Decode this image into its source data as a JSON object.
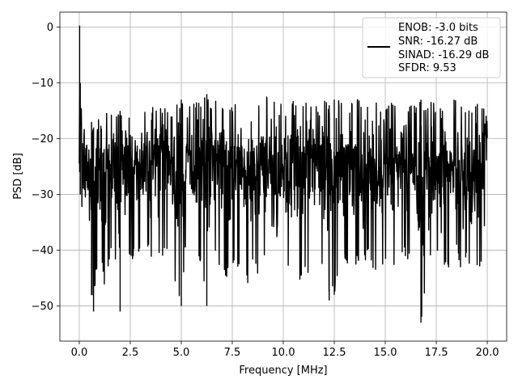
{
  "chart_data": {
    "type": "line",
    "xlabel": "Frequency [MHz]",
    "ylabel": "PSD [dB]",
    "xlim": [
      -0.95,
      20.95
    ],
    "ylim": [
      -56.3,
      2.7
    ],
    "xticks": [
      0.0,
      2.5,
      5.0,
      7.5,
      10.0,
      12.5,
      15.0,
      17.5,
      20.0
    ],
    "xtick_labels": [
      "0.0",
      "2.5",
      "5.0",
      "7.5",
      "10.0",
      "12.5",
      "15.0",
      "17.5",
      "20.0"
    ],
    "yticks": [
      0,
      -10,
      -20,
      -30,
      -40,
      -50
    ],
    "ytick_labels": [
      "0",
      "−10",
      "−20",
      "−30",
      "−40",
      "−50"
    ],
    "grid": true,
    "legend_position": "top-right",
    "series": [
      {
        "legend_lines": [
          "ENOB: -3.0 bits",
          "SNR: -16.27 dB",
          "SINAD: -16.29 dB",
          "SFDR: 9.53"
        ],
        "color": "#000000",
        "x": [
          0.0,
          0.02,
          0.05,
          0.1,
          0.15,
          0.2,
          0.25,
          0.3,
          0.35,
          0.4,
          0.5,
          0.6,
          0.7,
          0.8,
          0.9,
          1.0,
          1.25,
          1.5,
          1.75,
          2.0,
          2.25,
          2.5,
          2.75,
          3.0,
          3.25,
          3.5,
          3.75,
          4.0,
          4.25,
          4.5,
          4.75,
          5.0,
          5.25,
          5.5,
          5.75,
          6.0,
          6.25,
          6.5,
          6.75,
          7.0,
          7.25,
          7.5,
          7.75,
          8.0,
          8.25,
          8.5,
          8.75,
          9.0,
          9.25,
          9.5,
          9.75,
          10.0,
          10.25,
          10.5,
          10.75,
          11.0,
          11.25,
          11.5,
          11.75,
          12.0,
          12.25,
          12.5,
          12.75,
          13.0,
          13.25,
          13.5,
          13.75,
          14.0,
          14.25,
          14.5,
          14.75,
          15.0,
          15.25,
          15.5,
          15.75,
          16.0,
          16.25,
          16.5,
          16.75,
          17.0,
          17.25,
          17.5,
          17.75,
          18.0,
          18.25,
          18.5,
          18.75,
          19.0,
          19.25,
          19.5,
          19.75,
          20.0
        ],
        "max": [
          -24,
          0.3,
          -10,
          -14,
          -15,
          -16,
          -18,
          -18,
          -19,
          -18,
          -20,
          -17,
          -18,
          -17,
          -17,
          -16,
          -15,
          -16,
          -15,
          -15,
          -15,
          -15,
          -14,
          -14,
          -14,
          -14,
          -15,
          -14,
          -14,
          -15,
          -14,
          -13,
          -14,
          -14,
          -13,
          -13,
          -12,
          -14,
          -13,
          -14,
          -13,
          -14,
          -13,
          -13,
          -14,
          -13,
          -13,
          -13,
          -12,
          -13,
          -13,
          -13,
          -14,
          -13,
          -13,
          -12,
          -13,
          -13,
          -13,
          -13,
          -14,
          -13,
          -13,
          -13,
          -14,
          -13,
          -13,
          -13,
          -14,
          -13,
          -14,
          -14,
          -13,
          -14,
          -14,
          -14,
          -14,
          -14,
          -13,
          -15,
          -13,
          -14,
          -14,
          -14,
          -13,
          -13,
          -14,
          -14,
          -13,
          -13,
          -14,
          -15
        ],
        "min": [
          -27,
          -26,
          -30,
          -32,
          -35,
          -38,
          -41,
          -37,
          -35,
          -40,
          -36,
          -48,
          -51,
          -45,
          -44,
          -41,
          -47,
          -41,
          -41,
          -51,
          -44,
          -42,
          -41,
          -41,
          -38,
          -42,
          -40,
          -42,
          -40,
          -41,
          -47,
          -50,
          -38,
          -40,
          -42,
          -44,
          -50,
          -39,
          -42,
          -44,
          -45,
          -44,
          -43,
          -44,
          -46,
          -43,
          -45,
          -41,
          -44,
          -45,
          -47,
          -41,
          -44,
          -41,
          -47,
          -43,
          -45,
          -42,
          -41,
          -44,
          -49,
          -48,
          -43,
          -42,
          -44,
          -43,
          -42,
          -42,
          -41,
          -45,
          -44,
          -43,
          -43,
          -45,
          -41,
          -41,
          -43,
          -45,
          -53,
          -45,
          -42,
          -41,
          -43,
          -43,
          -46,
          -40,
          -45,
          -41,
          -47,
          -44,
          -43,
          -28
        ]
      }
    ]
  }
}
